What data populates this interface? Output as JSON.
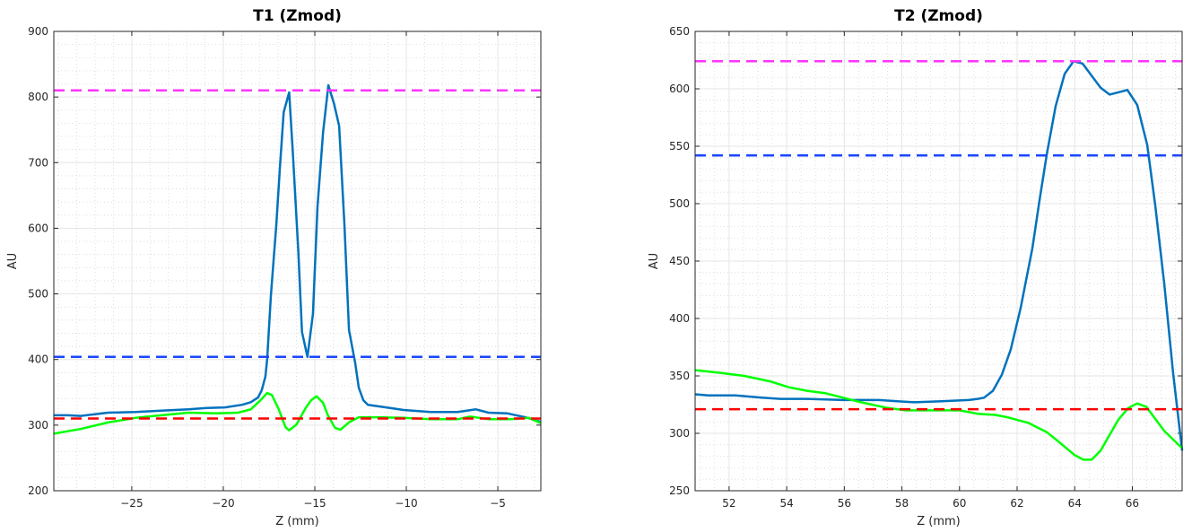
{
  "chart_data": [
    {
      "type": "line",
      "title": "T1 (Zmod)",
      "xlabel": "Z (mm)",
      "ylabel": "AU",
      "xlim": [
        -29.26,
        -2.65
      ],
      "ylim": [
        200,
        900
      ],
      "xticks": [
        -25,
        -20,
        -15,
        -10,
        -5
      ],
      "yticks": [
        200,
        300,
        400,
        500,
        600,
        700,
        800,
        900
      ],
      "xminor": 1,
      "yminor": 20,
      "grid": true,
      "series": [
        {
          "name": "blue",
          "color": "#0072BD",
          "style": "solid",
          "x": [
            -29.26,
            -28.5,
            -27.8,
            -26.3,
            -24.8,
            -23.4,
            -21.9,
            -20.9,
            -19.9,
            -18.97,
            -18.5,
            -18.1,
            -17.9,
            -17.7,
            -17.6,
            -17.4,
            -17.1,
            -16.9,
            -16.7,
            -16.4,
            -16.2,
            -15.9,
            -15.7,
            -15.4,
            -15.1,
            -14.85,
            -14.55,
            -14.26,
            -13.95,
            -13.67,
            -13.38,
            -13.13,
            -12.79,
            -12.6,
            -12.35,
            -12.1,
            -11.1,
            -10.15,
            -8.67,
            -7.2,
            -6.2,
            -5.5,
            -4.5,
            -3.5,
            -2.65
          ],
          "y": [
            315,
            315,
            314,
            319,
            320,
            322,
            324,
            326,
            327,
            331,
            335,
            342,
            353,
            374,
            401,
            497,
            606,
            695,
            777,
            807,
            715,
            565,
            442,
            404,
            469,
            633,
            746,
            818,
            790,
            756,
            606,
            445,
            394,
            357,
            338,
            331,
            327,
            323,
            320,
            320,
            324,
            319,
            318,
            312,
            305
          ]
        },
        {
          "name": "green",
          "color": "#00FF00",
          "style": "solid",
          "x": [
            -29.26,
            -27.8,
            -26.3,
            -24.8,
            -23.4,
            -21.9,
            -20.4,
            -19.2,
            -18.5,
            -18.0,
            -17.6,
            -17.35,
            -17.0,
            -16.6,
            -16.4,
            -16.0,
            -15.5,
            -15.2,
            -14.9,
            -14.55,
            -14.3,
            -13.9,
            -13.6,
            -13.1,
            -12.6,
            -11.6,
            -10.15,
            -8.67,
            -7.2,
            -6.5,
            -5.5,
            -4.3,
            -3.3,
            -2.65
          ],
          "y": [
            287,
            294,
            304,
            311,
            315,
            319,
            318,
            319,
            324,
            337,
            349,
            346,
            326,
            297,
            292,
            301,
            326,
            338,
            344,
            334,
            316,
            296,
            293,
            305,
            312,
            312,
            311,
            309,
            309,
            313,
            309,
            309,
            311,
            303
          ]
        },
        {
          "name": "magenta-threshold",
          "color": "#FF33FF",
          "style": "dashed",
          "x": [
            -29.26,
            -2.65
          ],
          "y": [
            810,
            810
          ]
        },
        {
          "name": "blue-threshold",
          "color": "#1A47FF",
          "style": "dashed",
          "x": [
            -29.26,
            -2.65
          ],
          "y": [
            404,
            404
          ]
        },
        {
          "name": "red-threshold",
          "color": "#FF0000",
          "style": "dashed",
          "x": [
            -29.26,
            -2.65
          ],
          "y": [
            310,
            310
          ]
        }
      ]
    },
    {
      "type": "line",
      "title": "T2 (Zmod)",
      "xlabel": "Z (mm)",
      "ylabel": "AU",
      "xlim": [
        50.82,
        67.73
      ],
      "ylim": [
        250,
        650
      ],
      "xticks": [
        52,
        54,
        56,
        58,
        60,
        62,
        64,
        66
      ],
      "yticks": [
        250,
        300,
        350,
        400,
        450,
        500,
        550,
        600,
        650
      ],
      "xminor": 0.5,
      "yminor": 10,
      "grid": true,
      "series": [
        {
          "name": "blue",
          "color": "#0072BD",
          "style": "solid",
          "x": [
            50.82,
            51.28,
            52.22,
            53.15,
            53.78,
            54.71,
            55.96,
            57.2,
            57.83,
            58.45,
            59.38,
            60.32,
            60.63,
            60.85,
            61.16,
            61.47,
            61.78,
            62.12,
            62.53,
            62.78,
            63.03,
            63.34,
            63.65,
            63.96,
            64.27,
            64.9,
            65.21,
            65.83,
            66.17,
            66.52,
            66.8,
            67.11,
            67.42,
            67.73
          ],
          "y": [
            334,
            333,
            333,
            331,
            330,
            330,
            329,
            329,
            328,
            327,
            328,
            329,
            330,
            331,
            337,
            351,
            373,
            409,
            461,
            503,
            543,
            585,
            613,
            624,
            622,
            601,
            595,
            599,
            586,
            551,
            498,
            430,
            352,
            285
          ]
        },
        {
          "name": "green",
          "color": "#00FF00",
          "style": "solid",
          "x": [
            50.82,
            51.6,
            52.53,
            53.46,
            54.09,
            54.71,
            55.33,
            55.96,
            56.58,
            57.51,
            58.14,
            59.07,
            60.0,
            60.63,
            61.25,
            61.66,
            62.4,
            63.03,
            63.43,
            64.0,
            64.3,
            64.59,
            64.9,
            65.52,
            65.86,
            66.17,
            66.49,
            67.11,
            67.73
          ],
          "y": [
            355,
            353,
            350,
            345,
            340,
            337,
            335,
            331,
            327,
            322,
            320,
            320,
            320,
            317,
            316,
            314,
            309,
            301,
            293,
            281,
            277,
            277,
            285,
            312,
            322,
            326,
            323,
            302,
            287
          ]
        },
        {
          "name": "magenta-threshold",
          "color": "#FF33FF",
          "style": "dashed",
          "x": [
            50.82,
            67.73
          ],
          "y": [
            624,
            624
          ]
        },
        {
          "name": "blue-threshold",
          "color": "#1A47FF",
          "style": "dashed",
          "x": [
            50.82,
            67.73
          ],
          "y": [
            542,
            542
          ]
        },
        {
          "name": "red-threshold",
          "color": "#FF0000",
          "style": "dashed",
          "x": [
            50.82,
            67.73
          ],
          "y": [
            321,
            321
          ]
        }
      ]
    }
  ]
}
